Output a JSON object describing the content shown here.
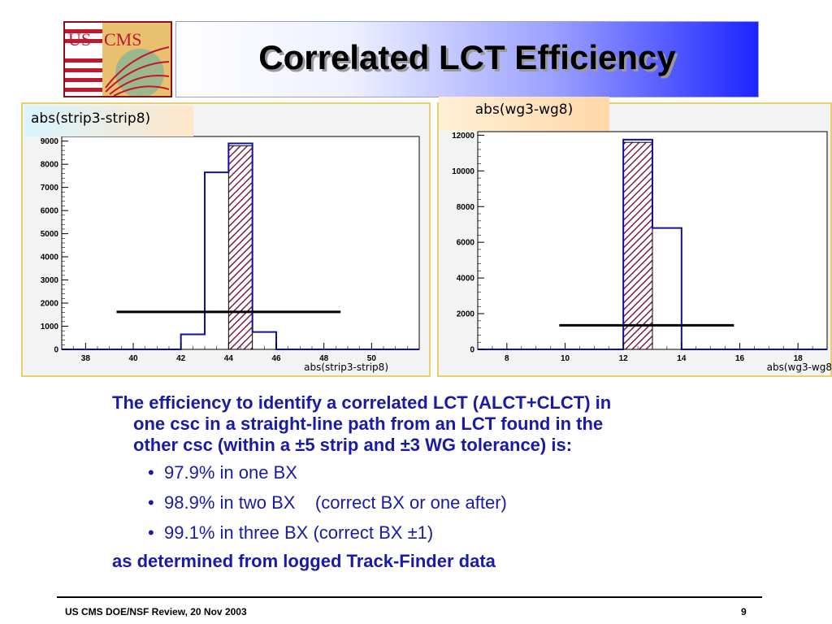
{
  "slide": {
    "title": "Correlated LCT Efficiency",
    "logo_text_us": "US",
    "logo_text_cms": "CMS"
  },
  "colors": {
    "text_blue": "#1a1aa8",
    "histogram_line": "#1010a0",
    "hatch_fill": "#7a2040",
    "banner_end": "#1e24ff"
  },
  "chart_data": [
    {
      "type": "bar",
      "title": "abs(strip3-strip8)",
      "xlabel": "abs(strip3-strip8)",
      "ylabel": "",
      "xlim": [
        37,
        52
      ],
      "ylim": [
        0,
        9200
      ],
      "x_ticks": [
        "38",
        "40",
        "42",
        "44",
        "46",
        "48",
        "50"
      ],
      "y_ticks": [
        "0",
        "1000",
        "2000",
        "3000",
        "4000",
        "5000",
        "6000",
        "7000",
        "8000",
        "9000"
      ],
      "series": [
        {
          "bins": [
            {
              "x0": 37,
              "x1": 42,
              "value": 0
            },
            {
              "x0": 42,
              "x1": 43,
              "value": 650
            },
            {
              "x0": 43,
              "x1": 44,
              "value": 7650
            },
            {
              "x0": 44,
              "x1": 45,
              "value": 8900
            },
            {
              "x0": 45,
              "x1": 46,
              "value": 750
            },
            {
              "x0": 46,
              "x1": 52,
              "value": 0
            }
          ]
        },
        {
          "hatched": true,
          "bins": [
            {
              "x0": 44,
              "x1": 45,
              "value": 8800
            }
          ]
        }
      ],
      "annotation_line": {
        "x0": 39.3,
        "x1": 48.7,
        "y": 1620
      }
    },
    {
      "type": "bar",
      "title": "abs(wg3-wg8)",
      "xlabel": "abs(wg3-wg8",
      "ylabel": "",
      "xlim": [
        7,
        19
      ],
      "ylim": [
        0,
        12200
      ],
      "x_ticks": [
        "8",
        "10",
        "12",
        "14",
        "16",
        "18"
      ],
      "y_ticks": [
        "0",
        "2000",
        "4000",
        "6000",
        "8000",
        "10000",
        "12000"
      ],
      "series": [
        {
          "bins": [
            {
              "x0": 7,
              "x1": 12,
              "value": 0
            },
            {
              "x0": 12,
              "x1": 13,
              "value": 11750
            },
            {
              "x0": 13,
              "x1": 14,
              "value": 6800
            },
            {
              "x0": 14,
              "x1": 19,
              "value": 0
            }
          ]
        },
        {
          "hatched": true,
          "bins": [
            {
              "x0": 12,
              "x1": 13,
              "value": 11600
            }
          ]
        }
      ],
      "annotation_line": {
        "x0": 9.8,
        "x1": 15.8,
        "y": 1350
      }
    }
  ],
  "text": {
    "para_line1": "The efficiency to identify a correlated LCT (ALCT+CLCT) in",
    "para_line2": "one csc in a straight-line path from an LCT found in the",
    "para_line3": "other csc (within a ±5 strip and ±3 WG tolerance) is:",
    "bullets": [
      "97.9% in one BX",
      "98.9% in two BX    (correct BX or one after)",
      "99.1% in three BX (correct BX ±1)"
    ],
    "closing": "as determined from logged Track-Finder data"
  },
  "footer": {
    "left": "US CMS DOE/NSF Review, 20 Nov  2003",
    "page": "9"
  }
}
